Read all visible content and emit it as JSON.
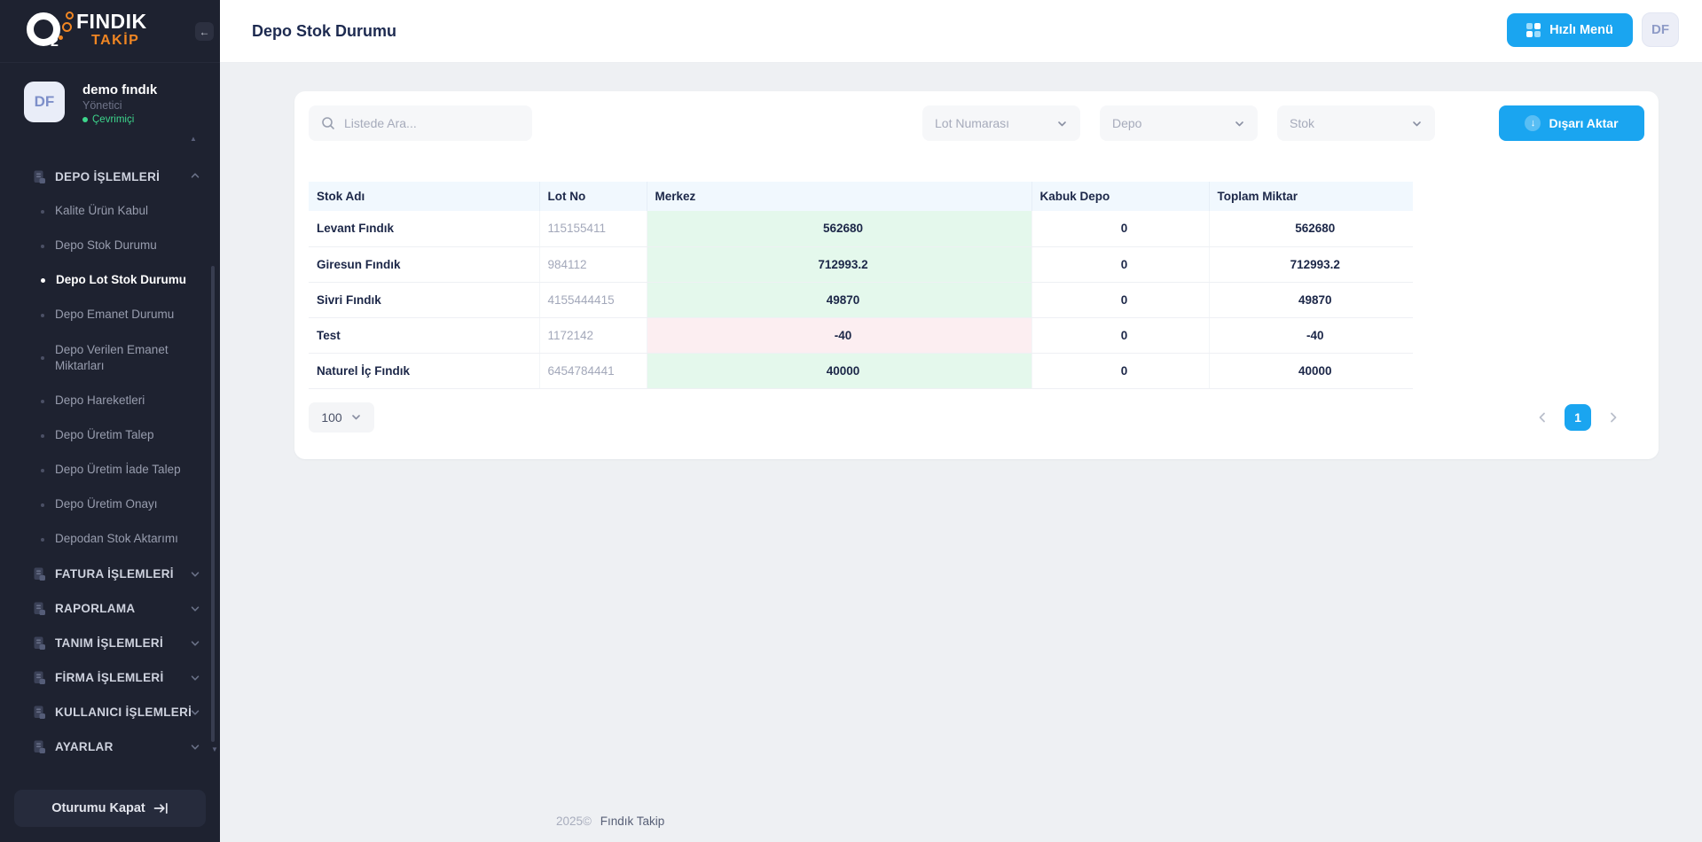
{
  "brand": {
    "name_top": "FINDIK",
    "name_bottom": "TAKİP",
    "logo_sub": "2"
  },
  "user": {
    "initials": "DF",
    "name": "demo fındık",
    "role": "Yönetici",
    "status": "Çevrimiçi"
  },
  "sidebar": {
    "sections": [
      {
        "label": "DEPO İŞLEMLERİ",
        "expanded": true,
        "items": [
          "Kalite Ürün Kabul",
          "Depo Stok Durumu",
          "Depo Lot Stok Durumu",
          "Depo Emanet Durumu",
          "Depo Verilen Emanet Miktarları",
          "Depo Hareketleri",
          "Depo Üretim Talep",
          "Depo Üretim İade Talep",
          "Depo Üretim Onayı",
          "Depodan Stok Aktarımı"
        ],
        "active_item": "Depo Lot Stok Durumu"
      },
      {
        "label": "FATURA İŞLEMLERİ",
        "expanded": false
      },
      {
        "label": "RAPORLAMA",
        "expanded": false
      },
      {
        "label": "TANIM İŞLEMLERİ",
        "expanded": false
      },
      {
        "label": "FİRMA İŞLEMLERİ",
        "expanded": false
      },
      {
        "label": "KULLANICI İŞLEMLERİ",
        "expanded": false
      },
      {
        "label": "AYARLAR",
        "expanded": false
      }
    ],
    "logout_label": "Oturumu Kapat"
  },
  "header": {
    "title": "Depo Stok Durumu",
    "quick_menu_label": "Hızlı Menü",
    "avatar_label": "DF"
  },
  "filters": {
    "search_placeholder": "Listede Ara...",
    "dropdowns": [
      "Lot Numarası",
      "Depo",
      "Stok"
    ],
    "export_label": "Dışarı Aktar"
  },
  "table": {
    "columns": [
      "Stok Adı",
      "Lot No",
      "Merkez",
      "Kabuk Depo",
      "Toplam Miktar"
    ],
    "rows": [
      [
        "Levant Fındık",
        "115155411",
        "562680",
        "0",
        "562680"
      ],
      [
        "Giresun Fındık",
        "984112",
        "712993.2",
        "0",
        "712993.2"
      ],
      [
        "Sivri Fındık",
        "4155444415",
        "49870",
        "0",
        "49870"
      ],
      [
        "Test",
        "1172142",
        "-40",
        "0",
        "-40"
      ],
      [
        "Naturel İç Fındık",
        "6454784441",
        "40000",
        "0",
        "40000"
      ]
    ]
  },
  "pagination": {
    "page_size": "100",
    "current_page": "1"
  },
  "footer": {
    "year": "2025©",
    "brand": "Fındık Takip"
  },
  "colors": {
    "accent": "#1aa5f0",
    "sidebar_bg": "#1e2230",
    "positive_cell": "#e4f8ec",
    "negative_cell": "#fceef1",
    "online": "#3dd68c",
    "brand_orange": "#f08623"
  }
}
